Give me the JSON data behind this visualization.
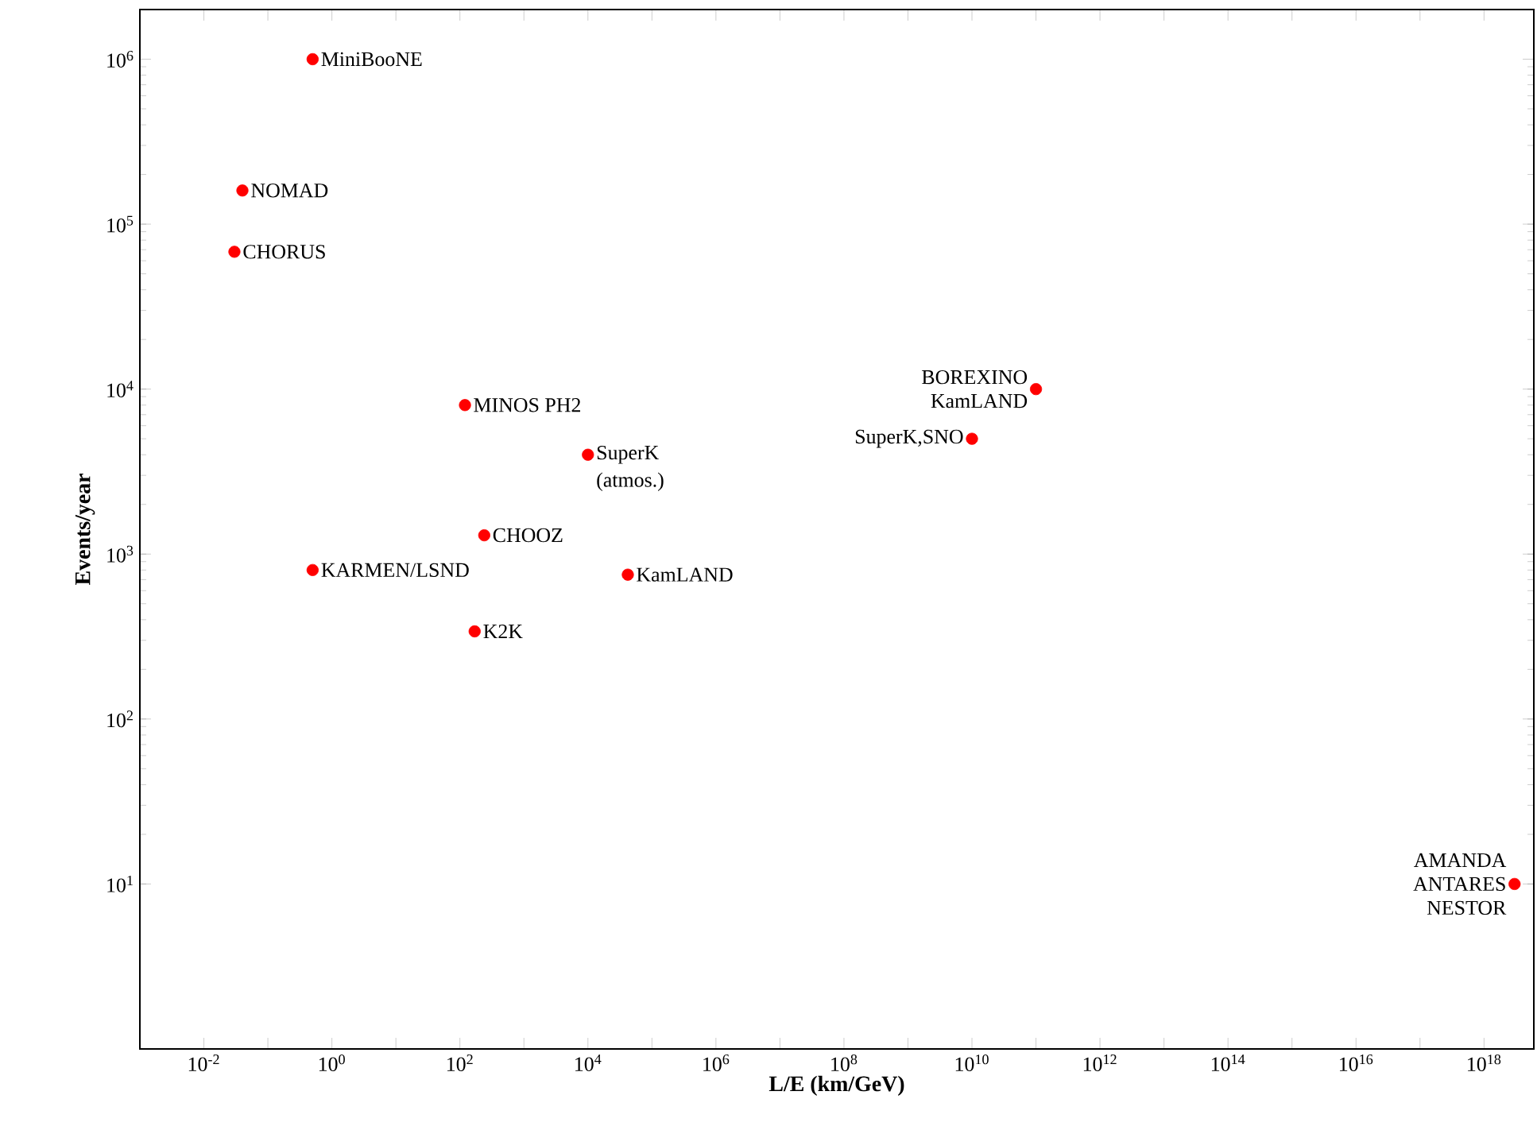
{
  "chart_data": {
    "type": "scatter",
    "xlabel": "L/E (km/GeV)",
    "ylabel": "Events/year",
    "log": "xy",
    "marker": "circle",
    "grid": false,
    "x": [
      0.5,
      0.04,
      0.03,
      120,
      10000,
      240,
      0.5,
      42000,
      170,
      100000000000.0,
      10000000000.0,
      3e+18
    ],
    "series": [
      {
        "color": "#ff0000",
        "values": [
          1000000,
          160000,
          68000,
          8000,
          4000,
          1300,
          800,
          750,
          340,
          10000,
          5000,
          10
        ]
      }
    ],
    "xlim": [
      0.001,
      6e+18
    ],
    "ylim": [
      1,
      2000000
    ],
    "xticks": [
      {
        "value": 0.01,
        "label": "10$^{-2}$"
      },
      {
        "value": 0.1,
        "label": null
      },
      {
        "value": 1,
        "label": "10$^{0}$"
      },
      {
        "value": 10,
        "label": null
      },
      {
        "value": 100,
        "label": "10$^{2}$"
      },
      {
        "value": 1000,
        "label": null
      },
      {
        "value": 10000,
        "label": "10$^{4}$"
      },
      {
        "value": 100000,
        "label": null
      },
      {
        "value": 1000000,
        "label": "10$^{6}$"
      },
      {
        "value": 10000000,
        "label": null
      },
      {
        "value": 100000000,
        "label": "10$^{8}$"
      },
      {
        "value": 1000000000,
        "label": null
      },
      {
        "value": 10000000000,
        "label": "10$^{10}$"
      },
      {
        "value": 100000000000.0,
        "label": null
      },
      {
        "value": 1000000000000.0,
        "label": "10$^{12}$"
      },
      {
        "value": 10000000000000.0,
        "label": null
      },
      {
        "value": 100000000000000.0,
        "label": "10$^{14}$"
      },
      {
        "value": 1000000000000000.0,
        "label": null
      },
      {
        "value": 1e+16,
        "label": "10$^{16}$"
      },
      {
        "value": 1e+17,
        "label": null
      },
      {
        "value": 1e+18,
        "label": "10$^{18}$"
      }
    ],
    "yticks": [
      {
        "value": 10,
        "label": "10$^{1}$"
      },
      {
        "value": 100,
        "label": "10$^{2}$"
      },
      {
        "value": 1000,
        "label": "10$^{3}$"
      },
      {
        "value": 10000,
        "label": "10$^{4}$"
      },
      {
        "value": 100000,
        "label": "10$^{5}$"
      },
      {
        "value": 1000000,
        "label": "10$^{6}$"
      }
    ],
    "annotations": [
      {
        "text": "MiniBooNE",
        "x": 0.5,
        "y": 1000000
      },
      {
        "text": "NOMAD",
        "x": 0.04,
        "y": 160000
      },
      {
        "text": "CHORUS",
        "x": 0.03,
        "y": 68000
      },
      {
        "text": "MINOS PH2",
        "x": 120,
        "y": 8000
      },
      {
        "text": "SuperK",
        "x": 10000,
        "y": 4000
      },
      {
        "text": "(atmos.)",
        "x": 10000,
        "y": 4000
      },
      {
        "text": "CHOOZ",
        "x": 240,
        "y": 1300
      },
      {
        "text": "KARMEN/LSND",
        "x": 0.5,
        "y": 800
      },
      {
        "text": "KamLAND",
        "x": 42000,
        "y": 750
      },
      {
        "text": "K2K",
        "x": 170,
        "y": 340
      },
      {
        "text": "BOREXINO",
        "x": 100000000000.0,
        "y": 10000
      },
      {
        "text": "KamLAND",
        "x": 100000000000.0,
        "y": 10000
      },
      {
        "text": "SuperK,SNO",
        "x": 10000000000.0,
        "y": 5000
      },
      {
        "text": "AMANDA",
        "x": 3e+18,
        "y": 10
      },
      {
        "text": "ANTARES",
        "x": 3e+18,
        "y": 10
      },
      {
        "text": "NESTOR",
        "x": 3e+18,
        "y": 10
      }
    ]
  }
}
